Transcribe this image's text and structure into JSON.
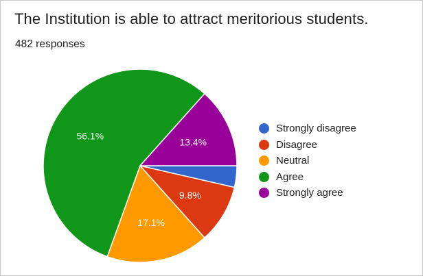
{
  "card": {
    "title": "The Institution is able to attract meritorious students.",
    "subtitle": "482 responses"
  },
  "chart_data": {
    "type": "pie",
    "title": "The Institution is able to attract meritorious students.",
    "total_responses": 482,
    "categories": [
      "Strongly disagree",
      "Disagree",
      "Neutral",
      "Agree",
      "Strongly agree"
    ],
    "values": [
      3.6,
      9.8,
      17.1,
      56.1,
      13.4
    ],
    "data_labels": [
      "",
      "9.8%",
      "17.1%",
      "56.1%",
      "13.4%"
    ],
    "colors": [
      "#3366cc",
      "#dc3912",
      "#ff9900",
      "#109618",
      "#990099"
    ],
    "start_angle_deg": 0,
    "direction": "clockwise",
    "legend_position": "right"
  }
}
